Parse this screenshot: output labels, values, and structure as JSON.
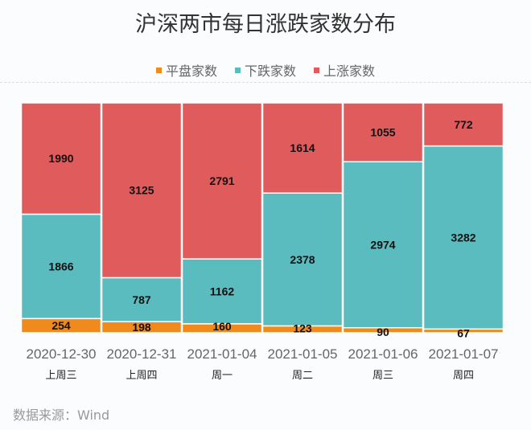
{
  "chart_data": {
    "type": "bar",
    "stacked": "percent",
    "title": "沪深两市每日涨跌家数分布",
    "categories": [
      "2020-12-30",
      "2020-12-31",
      "2021-01-04",
      "2021-01-05",
      "2021-01-06",
      "2021-01-07"
    ],
    "weekdays": [
      "上周三",
      "上周四",
      "周一",
      "周二",
      "周三",
      "周四"
    ],
    "series": [
      {
        "name": "平盘家数",
        "color": "#f08a1c",
        "values": [
          254,
          198,
          160,
          123,
          90,
          67
        ]
      },
      {
        "name": "下跌家数",
        "color": "#5bbcc0",
        "values": [
          1866,
          787,
          1162,
          2378,
          2974,
          3282
        ]
      },
      {
        "name": "上涨家数",
        "color": "#e05c5c",
        "values": [
          1990,
          3125,
          2791,
          1614,
          1055,
          772
        ]
      }
    ],
    "legend_position": "top",
    "grid": false
  },
  "source": "数据来源：Wind"
}
